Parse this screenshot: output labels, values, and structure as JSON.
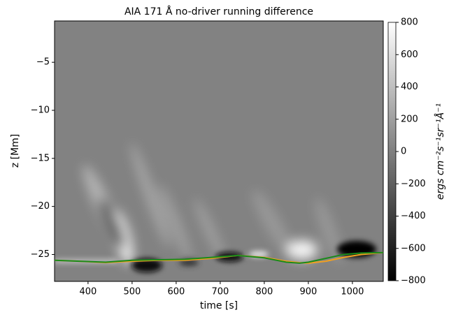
{
  "chart_data": {
    "type": "heatmap",
    "title": "AIA 171 Å no-driver running difference",
    "xlabel": "time [s]",
    "ylabel": "z [Mm]",
    "xlim": [
      324,
      1070
    ],
    "ylim": [
      -27.8,
      -0.7
    ],
    "xticks": [
      400,
      500,
      600,
      700,
      800,
      900,
      1000
    ],
    "yticks": [
      {
        "value": -5,
        "label": "−5"
      },
      {
        "value": -10,
        "label": "−10"
      },
      {
        "value": -15,
        "label": "−15"
      },
      {
        "value": -20,
        "label": "−20"
      },
      {
        "value": -25,
        "label": "−25"
      }
    ],
    "x": [
      324,
      380,
      440,
      500,
      560,
      620,
      680,
      740,
      800,
      850,
      880,
      900,
      940,
      980,
      1020,
      1070
    ],
    "series": [
      {
        "color": "#f0a020",
        "values": [
          -25.6,
          -25.7,
          -25.85,
          -25.7,
          -25.6,
          -25.6,
          -25.4,
          -25.1,
          -25.3,
          -25.7,
          -25.85,
          -25.9,
          -25.7,
          -25.3,
          -25.0,
          -24.8
        ]
      },
      {
        "color": "#1a8a1a",
        "values": [
          -25.6,
          -25.7,
          -25.8,
          -25.6,
          -25.55,
          -25.5,
          -25.3,
          -25.1,
          -25.35,
          -25.8,
          -25.9,
          -25.8,
          -25.4,
          -25.0,
          -24.85,
          -24.8
        ]
      }
    ],
    "colorbar": {
      "label": "ergs cm⁻²s⁻¹sr⁻¹Å⁻¹",
      "lim": [
        -800,
        800
      ],
      "colormap": [
        "#000000",
        "#ffffff"
      ],
      "ticks": [
        {
          "value": 800,
          "label": "800"
        },
        {
          "value": 600,
          "label": "600"
        },
        {
          "value": 400,
          "label": "400"
        },
        {
          "value": 200,
          "label": "200"
        },
        {
          "value": 0,
          "label": "0"
        },
        {
          "value": -200,
          "label": "−200"
        },
        {
          "value": -400,
          "label": "−400"
        },
        {
          "value": -600,
          "label": "−600"
        },
        {
          "value": -800,
          "label": "−800"
        }
      ]
    }
  }
}
